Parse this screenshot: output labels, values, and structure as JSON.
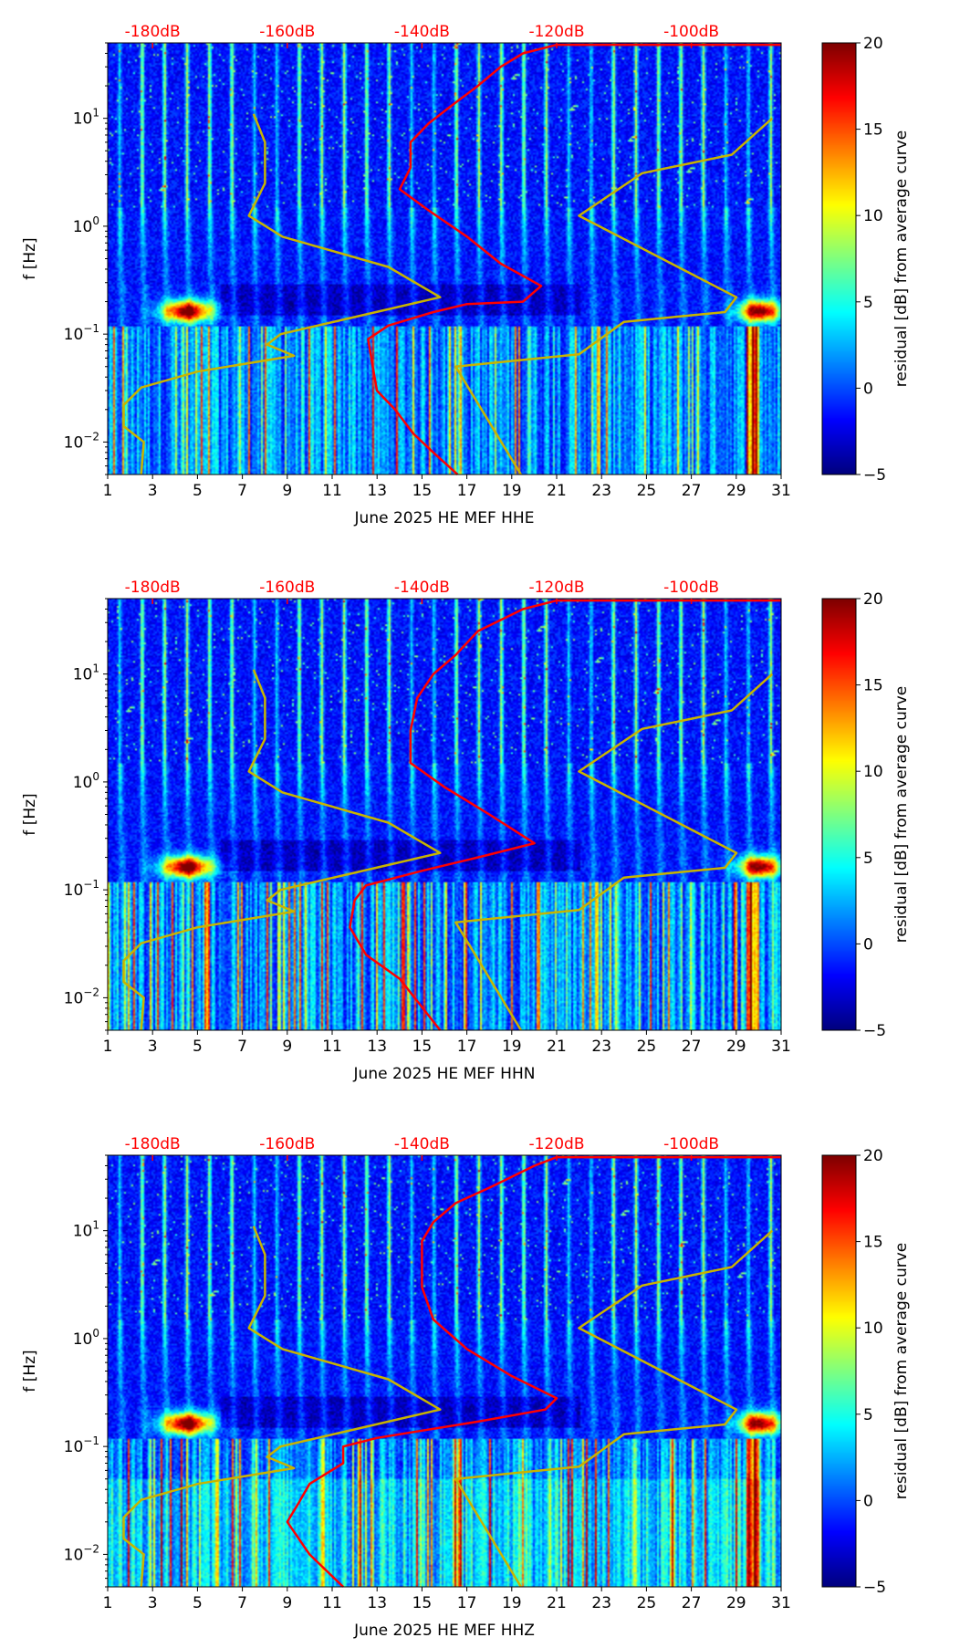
{
  "colors": {
    "red_curve": "#ff0000",
    "model_curve": "#c8b400",
    "top_axis_text": "#ff0000"
  },
  "chart_data": [
    {
      "type": "heatmap",
      "title": "",
      "xlabel": "June 2025 HE MEF  HHE",
      "ylabel": "f [Hz]",
      "x_ticks": [
        "1",
        "3",
        "5",
        "7",
        "9",
        "11",
        "13",
        "15",
        "17",
        "19",
        "21",
        "23",
        "25",
        "27",
        "29",
        "31"
      ],
      "xlim": [
        1,
        31
      ],
      "ylim": [
        0.005,
        50
      ],
      "yscale": "log",
      "y_ticks": [
        {
          "value": 0.01,
          "base": "10",
          "exp": "−2"
        },
        {
          "value": 0.1,
          "base": "10",
          "exp": "−1"
        },
        {
          "value": 1,
          "base": "10",
          "exp": "0"
        },
        {
          "value": 10,
          "base": "10",
          "exp": "1"
        }
      ],
      "top_axis": {
        "label_ticks": [
          "-180dB",
          "-160dB",
          "-140dB",
          "-120dB",
          "-100dB"
        ],
        "values_db": [
          -180,
          -160,
          -140,
          -120,
          -100
        ]
      },
      "colorbar": {
        "label": "residual [dB] from average curve",
        "ticks": [
          "20",
          "15",
          "10",
          "5",
          "0",
          "−5"
        ],
        "range": [
          -5,
          20
        ],
        "colormap": "jet"
      },
      "red_curve_db": [
        [
          -134.7,
          0.005
        ],
        [
          -138.3,
          0.008
        ],
        [
          -141.3,
          0.012
        ],
        [
          -144,
          0.02
        ],
        [
          -146.7,
          0.03
        ],
        [
          -147.3,
          0.05
        ],
        [
          -148,
          0.09
        ],
        [
          -145,
          0.12
        ],
        [
          -138.3,
          0.16
        ],
        [
          -133.3,
          0.19
        ],
        [
          -125,
          0.2
        ],
        [
          -122.3,
          0.28
        ],
        [
          -128.3,
          0.45
        ],
        [
          -133.3,
          0.8
        ],
        [
          -139,
          1.4
        ],
        [
          -143.3,
          2.2
        ],
        [
          -141.7,
          3.5
        ],
        [
          -141.7,
          6
        ],
        [
          -139,
          9
        ],
        [
          -135,
          14
        ],
        [
          -131.7,
          20
        ],
        [
          -128.3,
          30
        ],
        [
          -125,
          40
        ],
        [
          -120,
          48
        ],
        [
          -86.7,
          48
        ]
      ],
      "model_low_db": [
        [
          -181.7,
          0.005
        ],
        [
          -181.3,
          0.01
        ],
        [
          -184.3,
          0.014
        ],
        [
          -184.3,
          0.022
        ],
        [
          -181.7,
          0.032
        ],
        [
          -173.3,
          0.045
        ],
        [
          -159,
          0.063
        ],
        [
          -163,
          0.08
        ],
        [
          -161,
          0.1
        ],
        [
          -145,
          0.17
        ],
        [
          -137.3,
          0.22
        ],
        [
          -145,
          0.42
        ],
        [
          -160.7,
          0.8
        ],
        [
          -165.7,
          1.25
        ],
        [
          -163.3,
          2.5
        ],
        [
          -163.3,
          6
        ],
        [
          -165,
          11
        ]
      ],
      "model_high_db": [
        [
          -125.3,
          0.005
        ],
        [
          -135,
          0.05
        ],
        [
          -116.7,
          0.065
        ],
        [
          -110,
          0.13
        ],
        [
          -95,
          0.16
        ],
        [
          -93.3,
          0.22
        ],
        [
          -116.7,
          1.25
        ],
        [
          -107.3,
          3.1
        ],
        [
          -94,
          4.6
        ],
        [
          -88,
          10
        ]
      ]
    },
    {
      "type": "heatmap",
      "title": "",
      "xlabel": "June 2025 HE MEF  HHN",
      "ylabel": "f [Hz]",
      "x_ticks": [
        "1",
        "3",
        "5",
        "7",
        "9",
        "11",
        "13",
        "15",
        "17",
        "19",
        "21",
        "23",
        "25",
        "27",
        "29",
        "31"
      ],
      "xlim": [
        1,
        31
      ],
      "ylim": [
        0.005,
        50
      ],
      "yscale": "log",
      "y_ticks": [
        {
          "value": 0.01,
          "base": "10",
          "exp": "−2"
        },
        {
          "value": 0.1,
          "base": "10",
          "exp": "−1"
        },
        {
          "value": 1,
          "base": "10",
          "exp": "0"
        },
        {
          "value": 10,
          "base": "10",
          "exp": "1"
        }
      ],
      "top_axis": {
        "label_ticks": [
          "-180dB",
          "-160dB",
          "-140dB",
          "-120dB",
          "-100dB"
        ],
        "values_db": [
          -180,
          -160,
          -140,
          -120,
          -100
        ]
      },
      "colorbar": {
        "label": "residual [dB] from average curve",
        "ticks": [
          "20",
          "15",
          "10",
          "5",
          "0",
          "−5"
        ],
        "range": [
          -5,
          20
        ],
        "colormap": "jet"
      },
      "red_curve_db": [
        [
          -137.3,
          0.005
        ],
        [
          -143.3,
          0.015
        ],
        [
          -148.3,
          0.025
        ],
        [
          -150.7,
          0.045
        ],
        [
          -150,
          0.08
        ],
        [
          -148.3,
          0.11
        ],
        [
          -140,
          0.15
        ],
        [
          -131.7,
          0.2
        ],
        [
          -123.3,
          0.27
        ],
        [
          -130,
          0.5
        ],
        [
          -136.7,
          0.9
        ],
        [
          -141.7,
          1.5
        ],
        [
          -141.7,
          3
        ],
        [
          -140.7,
          6
        ],
        [
          -138.3,
          10
        ],
        [
          -135,
          15
        ],
        [
          -131.7,
          25
        ],
        [
          -125,
          40
        ],
        [
          -120,
          48
        ],
        [
          -86.7,
          48
        ]
      ],
      "model_low_db": [
        [
          -181.7,
          0.005
        ],
        [
          -181.3,
          0.01
        ],
        [
          -184.3,
          0.014
        ],
        [
          -184.3,
          0.022
        ],
        [
          -181.7,
          0.032
        ],
        [
          -173.3,
          0.045
        ],
        [
          -159,
          0.063
        ],
        [
          -163,
          0.08
        ],
        [
          -161,
          0.1
        ],
        [
          -145,
          0.17
        ],
        [
          -137.3,
          0.22
        ],
        [
          -145,
          0.42
        ],
        [
          -160.7,
          0.8
        ],
        [
          -165.7,
          1.25
        ],
        [
          -163.3,
          2.5
        ],
        [
          -163.3,
          6
        ],
        [
          -165,
          11
        ]
      ],
      "model_high_db": [
        [
          -125.3,
          0.005
        ],
        [
          -135,
          0.05
        ],
        [
          -116.7,
          0.065
        ],
        [
          -110,
          0.13
        ],
        [
          -95,
          0.16
        ],
        [
          -93.3,
          0.22
        ],
        [
          -116.7,
          1.25
        ],
        [
          -107.3,
          3.1
        ],
        [
          -94,
          4.6
        ],
        [
          -88,
          10
        ]
      ]
    },
    {
      "type": "heatmap",
      "title": "",
      "xlabel": "June 2025 HE MEF  HHZ",
      "ylabel": "f [Hz]",
      "x_ticks": [
        "1",
        "3",
        "5",
        "7",
        "9",
        "11",
        "13",
        "15",
        "17",
        "19",
        "21",
        "23",
        "25",
        "27",
        "29",
        "31"
      ],
      "xlim": [
        1,
        31
      ],
      "ylim": [
        0.005,
        50
      ],
      "yscale": "log",
      "y_ticks": [
        {
          "value": 0.01,
          "base": "10",
          "exp": "−2"
        },
        {
          "value": 0.1,
          "base": "10",
          "exp": "−1"
        },
        {
          "value": 1,
          "base": "10",
          "exp": "0"
        },
        {
          "value": 10,
          "base": "10",
          "exp": "1"
        }
      ],
      "top_axis": {
        "label_ticks": [
          "-180dB",
          "-160dB",
          "-140dB",
          "-120dB",
          "-100dB"
        ],
        "values_db": [
          -180,
          -160,
          -140,
          -120,
          -100
        ]
      },
      "colorbar": {
        "label": "residual [dB] from average curve",
        "ticks": [
          "20",
          "15",
          "10",
          "5",
          "0",
          "−5"
        ],
        "range": [
          -5,
          20
        ],
        "colormap": "jet"
      },
      "red_curve_db": [
        [
          -151.7,
          0.005
        ],
        [
          -156.7,
          0.01
        ],
        [
          -160,
          0.02
        ],
        [
          -158.3,
          0.03
        ],
        [
          -156.7,
          0.045
        ],
        [
          -151.7,
          0.07
        ],
        [
          -151.7,
          0.1
        ],
        [
          -146.7,
          0.12
        ],
        [
          -131.7,
          0.17
        ],
        [
          -121.7,
          0.22
        ],
        [
          -120,
          0.28
        ],
        [
          -126.7,
          0.45
        ],
        [
          -133.3,
          0.8
        ],
        [
          -138.3,
          1.5
        ],
        [
          -140,
          3
        ],
        [
          -140,
          5
        ],
        [
          -140,
          8
        ],
        [
          -138.3,
          12
        ],
        [
          -135,
          18
        ],
        [
          -130,
          25
        ],
        [
          -123.3,
          40
        ],
        [
          -120,
          48
        ],
        [
          -86.7,
          48
        ]
      ],
      "model_low_db": [
        [
          -181.7,
          0.005
        ],
        [
          -181.3,
          0.01
        ],
        [
          -184.3,
          0.014
        ],
        [
          -184.3,
          0.022
        ],
        [
          -181.7,
          0.032
        ],
        [
          -173.3,
          0.045
        ],
        [
          -159,
          0.063
        ],
        [
          -163,
          0.08
        ],
        [
          -161,
          0.1
        ],
        [
          -145,
          0.17
        ],
        [
          -137.3,
          0.22
        ],
        [
          -145,
          0.42
        ],
        [
          -160.7,
          0.8
        ],
        [
          -165.7,
          1.25
        ],
        [
          -163.3,
          2.5
        ],
        [
          -163.3,
          6
        ],
        [
          -165,
          11
        ]
      ],
      "model_high_db": [
        [
          -125.3,
          0.005
        ],
        [
          -135,
          0.05
        ],
        [
          -116.7,
          0.065
        ],
        [
          -110,
          0.13
        ],
        [
          -95,
          0.16
        ],
        [
          -93.3,
          0.22
        ],
        [
          -116.7,
          1.25
        ],
        [
          -107.3,
          3.1
        ],
        [
          -94,
          4.6
        ],
        [
          -88,
          10
        ]
      ]
    }
  ]
}
